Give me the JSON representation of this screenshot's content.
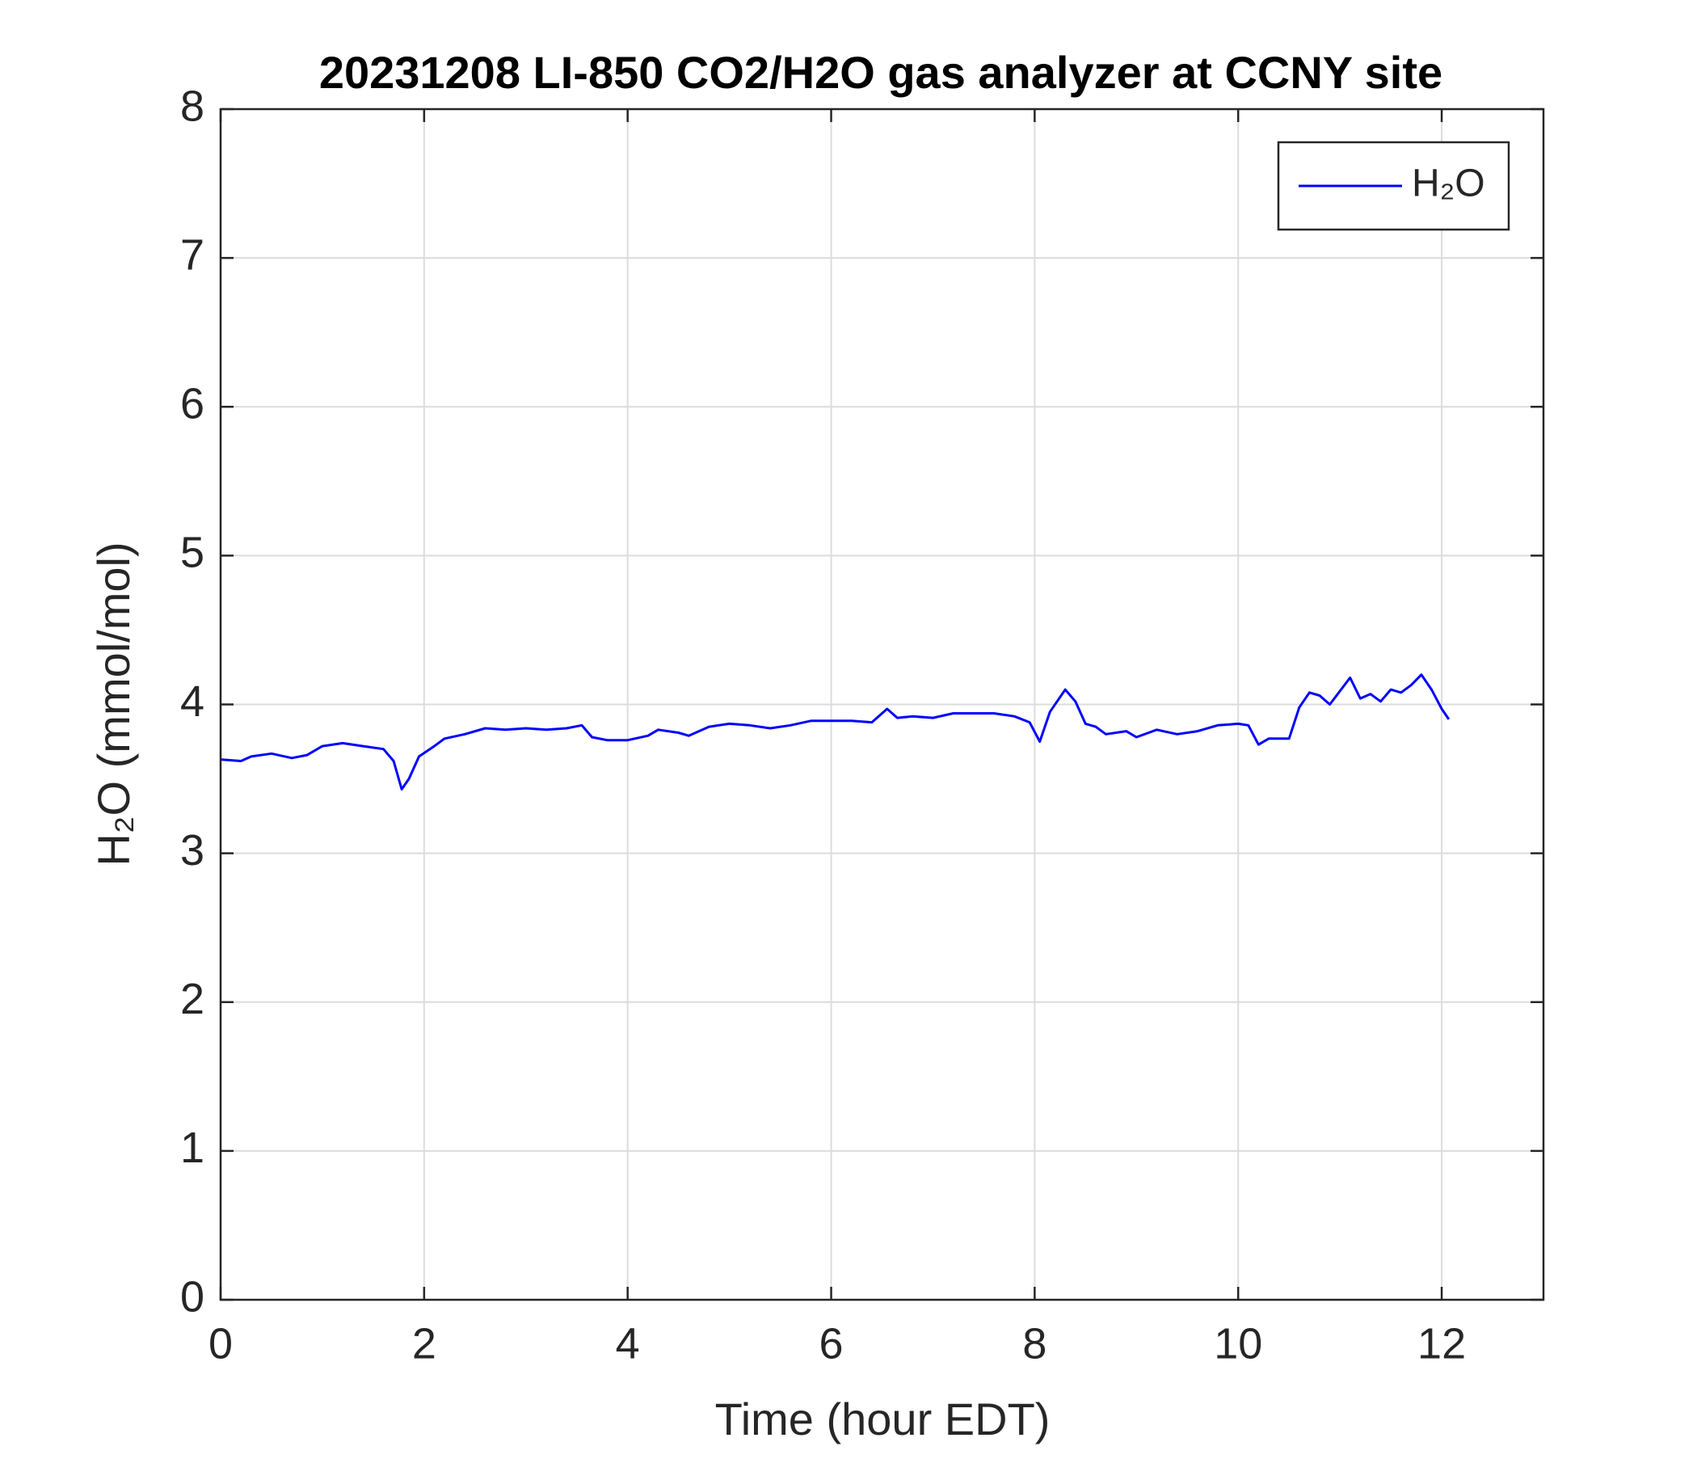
{
  "chart_data": {
    "type": "line",
    "title": "20231208 LI-850 CO2/H2O gas analyzer at CCNY site",
    "x_label": "Time (hour EDT)",
    "y_label": "H₂O (mmol/mol)",
    "x": [
      0,
      0.2,
      0.3,
      0.5,
      0.7,
      0.85,
      1.0,
      1.2,
      1.4,
      1.6,
      1.7,
      1.78,
      1.85,
      1.95,
      2.1,
      2.2,
      2.4,
      2.6,
      2.8,
      3.0,
      3.2,
      3.4,
      3.55,
      3.65,
      3.8,
      4.0,
      4.2,
      4.3,
      4.5,
      4.6,
      4.8,
      5.0,
      5.2,
      5.4,
      5.6,
      5.8,
      6.0,
      6.2,
      6.4,
      6.55,
      6.65,
      6.8,
      7.0,
      7.2,
      7.4,
      7.6,
      7.8,
      7.95,
      8.05,
      8.15,
      8.3,
      8.4,
      8.5,
      8.6,
      8.7,
      8.9,
      9.0,
      9.2,
      9.4,
      9.6,
      9.8,
      10.0,
      10.1,
      10.2,
      10.3,
      10.5,
      10.6,
      10.7,
      10.8,
      10.9,
      11.0,
      11.1,
      11.2,
      11.3,
      11.4,
      11.5,
      11.6,
      11.7,
      11.8,
      11.9,
      12.0,
      12.07
    ],
    "series": [
      {
        "name": "H₂O",
        "color": "#0000ff",
        "values": [
          3.63,
          3.62,
          3.65,
          3.67,
          3.64,
          3.66,
          3.72,
          3.74,
          3.72,
          3.7,
          3.62,
          3.43,
          3.5,
          3.65,
          3.72,
          3.77,
          3.8,
          3.84,
          3.83,
          3.84,
          3.83,
          3.84,
          3.86,
          3.78,
          3.76,
          3.76,
          3.79,
          3.83,
          3.81,
          3.79,
          3.85,
          3.87,
          3.86,
          3.84,
          3.86,
          3.89,
          3.89,
          3.89,
          3.88,
          3.97,
          3.91,
          3.92,
          3.91,
          3.94,
          3.94,
          3.94,
          3.92,
          3.88,
          3.75,
          3.95,
          4.1,
          4.02,
          3.87,
          3.85,
          3.8,
          3.82,
          3.78,
          3.83,
          3.8,
          3.82,
          3.86,
          3.87,
          3.86,
          3.73,
          3.77,
          3.77,
          3.98,
          4.08,
          4.06,
          4.0,
          4.09,
          4.18,
          4.04,
          4.07,
          4.02,
          4.1,
          4.08,
          4.13,
          4.2,
          4.1,
          3.97,
          3.9
        ]
      }
    ],
    "xlim": [
      0,
      13
    ],
    "xticks": [
      0,
      2,
      4,
      6,
      8,
      10,
      12
    ],
    "ylim": [
      0,
      8
    ],
    "yticks": [
      0,
      1,
      2,
      3,
      4,
      5,
      6,
      7,
      8
    ],
    "grid": true,
    "legend": "upper right"
  }
}
